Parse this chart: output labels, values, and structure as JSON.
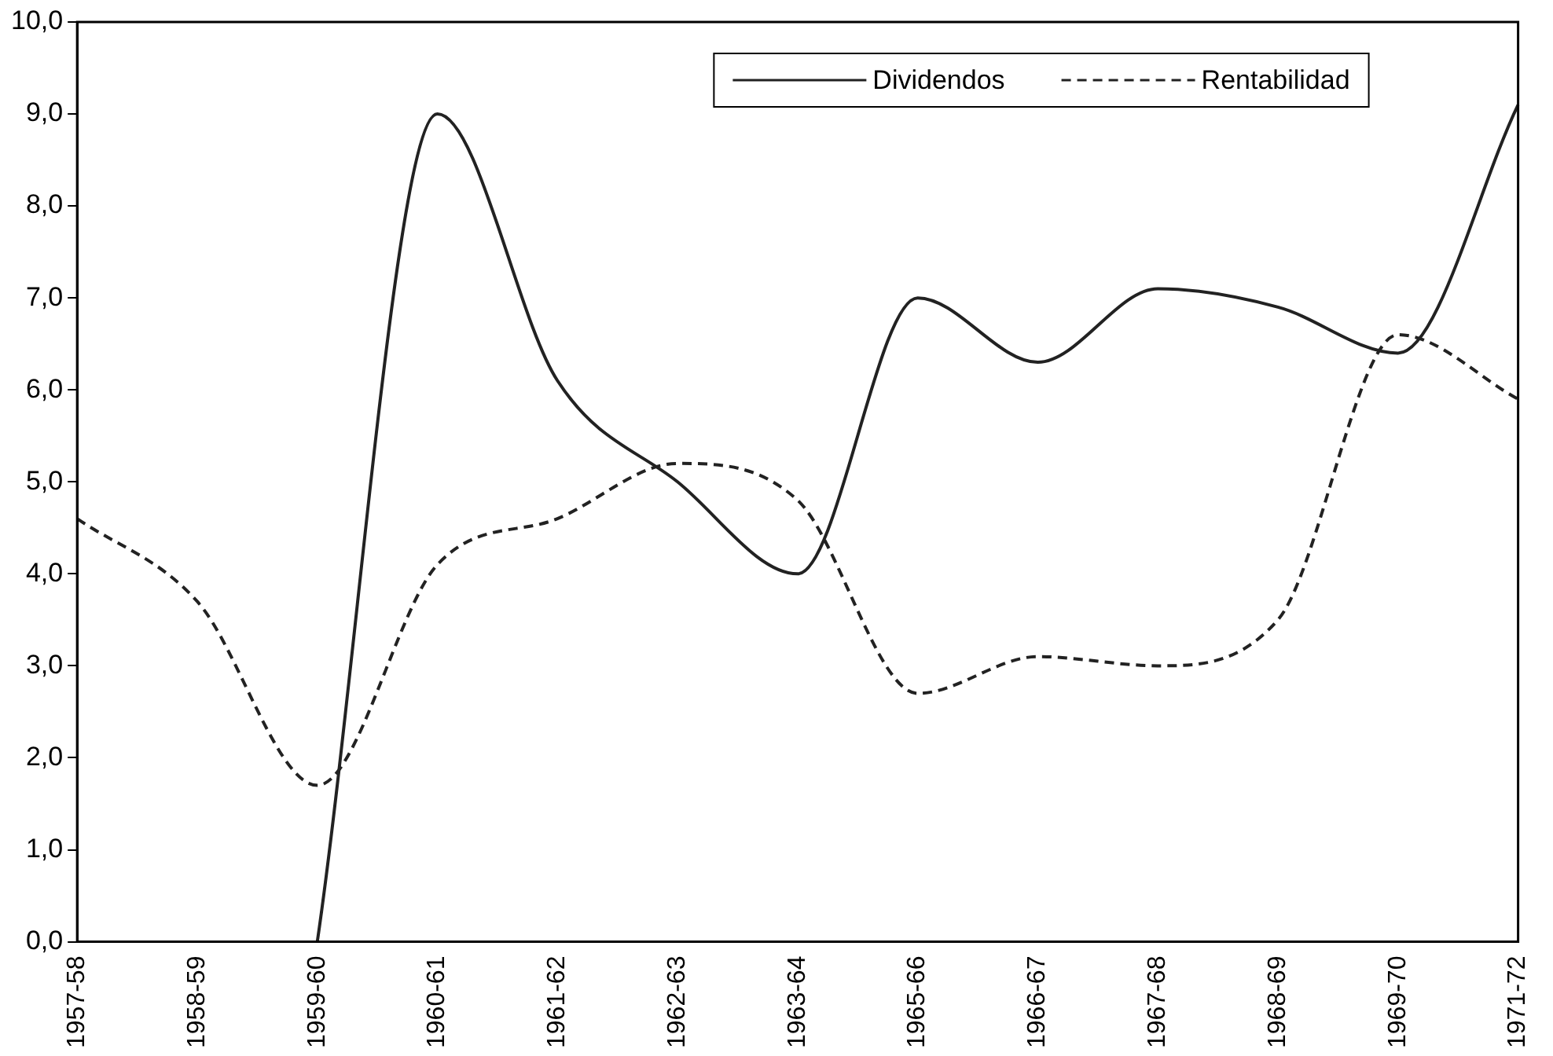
{
  "chart_data": {
    "type": "line",
    "categories": [
      "1957-58",
      "1958-59",
      "1959-60",
      "1960-61",
      "1961-62",
      "1962-63",
      "1963-64",
      "1965-66",
      "1966-67",
      "1967-68",
      "1968-69",
      "1969-70",
      "1971-72"
    ],
    "series": [
      {
        "name": "Dividendos",
        "color": "#222222",
        "line_style": "solid",
        "values": [
          null,
          null,
          0,
          9.0,
          6.1,
          5.0,
          4.0,
          7.0,
          6.3,
          7.1,
          6.9,
          6.4,
          9.1
        ]
      },
      {
        "name": "Rentabilidad",
        "color": "#222222",
        "line_style": "dashed",
        "values": [
          4.6,
          3.7,
          1.7,
          4.1,
          4.6,
          5.2,
          4.8,
          2.7,
          3.1,
          3.0,
          3.5,
          6.6,
          5.9
        ]
      }
    ],
    "ylim": [
      0,
      10
    ],
    "yticks": [
      {
        "value": 0,
        "label": "0,0"
      },
      {
        "value": 1,
        "label": "1,0"
      },
      {
        "value": 2,
        "label": "2,0"
      },
      {
        "value": 3,
        "label": "3,0"
      },
      {
        "value": 4,
        "label": "4,0"
      },
      {
        "value": 5,
        "label": "5,0"
      },
      {
        "value": 6,
        "label": "6,0"
      },
      {
        "value": 7,
        "label": "7,0"
      },
      {
        "value": 8,
        "label": "8,0"
      },
      {
        "value": 9,
        "label": "9,0"
      },
      {
        "value": 10,
        "label": "10,0"
      }
    ],
    "grid": false,
    "legend": "top right",
    "marker": "none"
  }
}
